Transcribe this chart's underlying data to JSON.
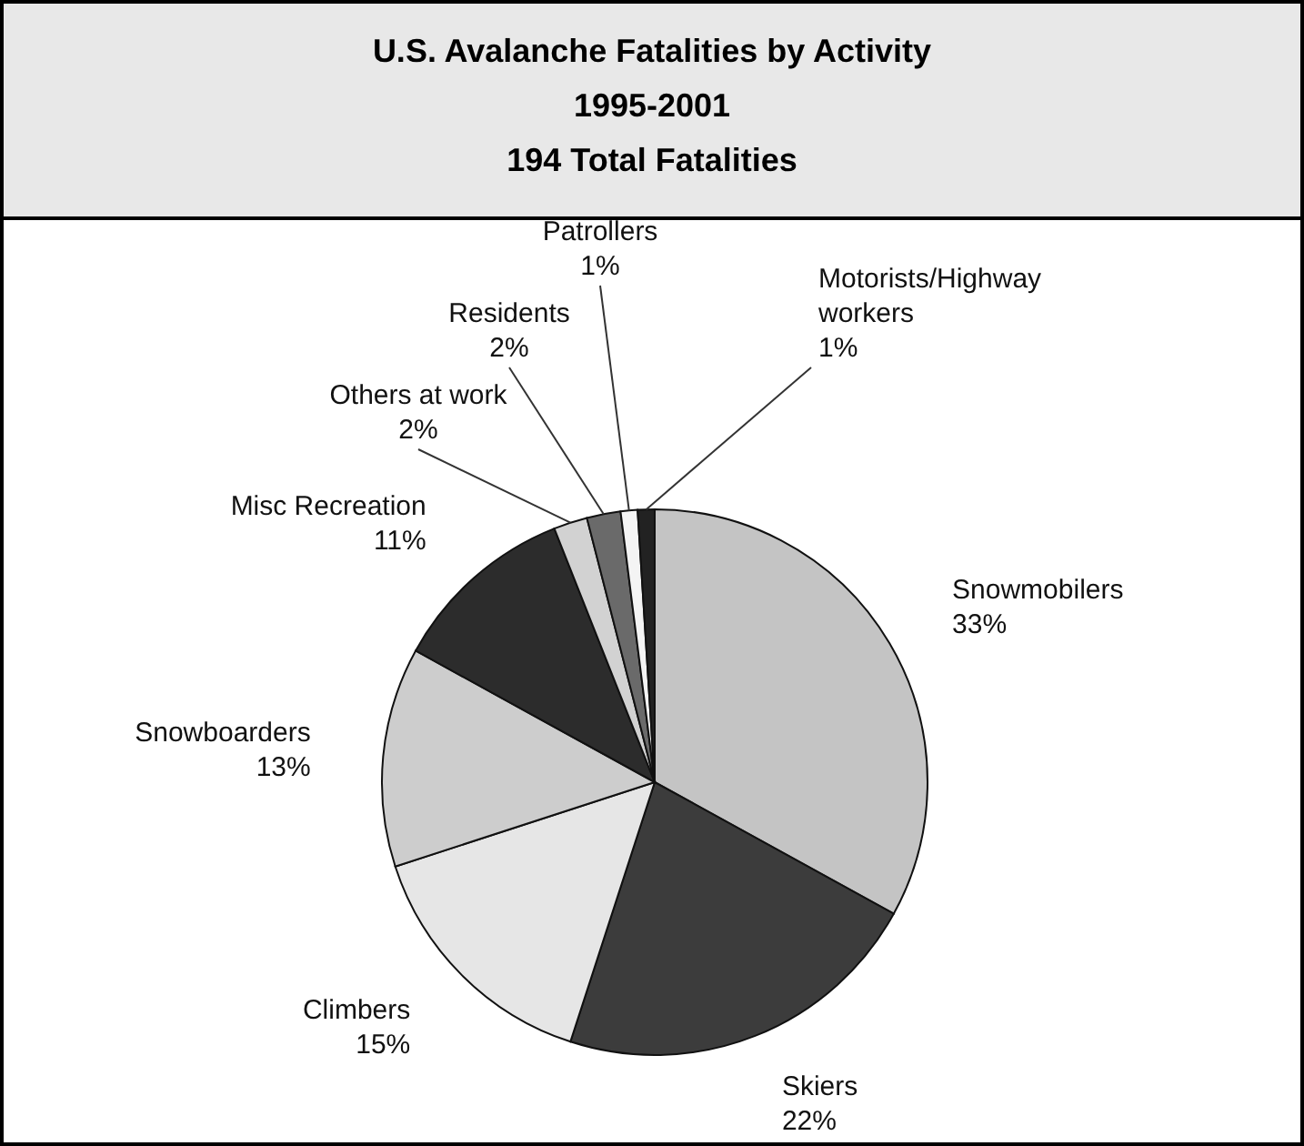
{
  "chart_data": {
    "type": "pie",
    "title": "U.S. Avalanche Fatalities by Activity",
    "subtitle": "1995-2001",
    "annotations": [
      "194 Total Fatalities"
    ],
    "categories": [
      "Snowmobilers",
      "Skiers",
      "Climbers",
      "Snowboarders",
      "Misc Recreation",
      "Others at work",
      "Residents",
      "Patrollers",
      "Motorists/Highway workers"
    ],
    "values": [
      33,
      22,
      15,
      13,
      11,
      2,
      2,
      1,
      1
    ],
    "value_labels": [
      "33%",
      "22%",
      "15%",
      "13%",
      "11%",
      "2%",
      "2%",
      "1%",
      "1%"
    ],
    "colors": [
      "#c4c4c4",
      "#3c3c3c",
      "#e6e6e6",
      "#cdcdcd",
      "#2c2c2c",
      "#d2d2d2",
      "#6a6a6a",
      "#f4f4f4",
      "#222222"
    ]
  }
}
